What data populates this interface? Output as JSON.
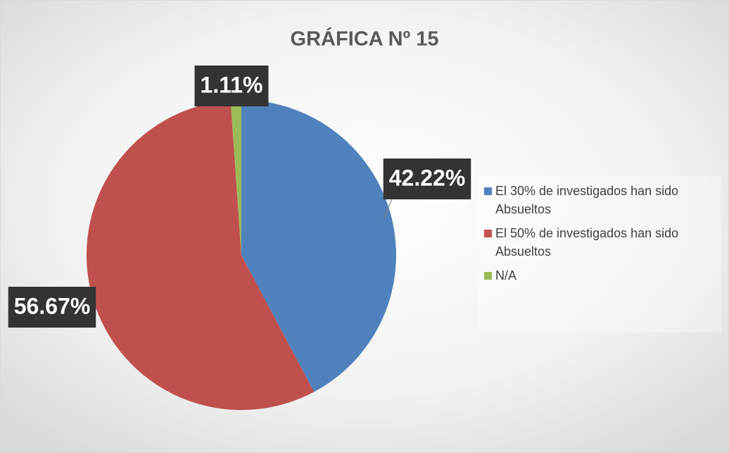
{
  "chart_data": {
    "type": "pie",
    "title": "GRÁFICA Nº 15",
    "categories": [
      "El 30% de investigados han sido Absueltos",
      "El 50% de investigados han sido Absueltos",
      "N/A"
    ],
    "values": [
      42.22,
      56.67,
      1.11
    ],
    "value_labels": [
      "42.22%",
      "56.67%",
      "1.11%"
    ],
    "colors": [
      "#4f81bd",
      "#c0504d",
      "#9bbb59"
    ],
    "legend": "right"
  }
}
